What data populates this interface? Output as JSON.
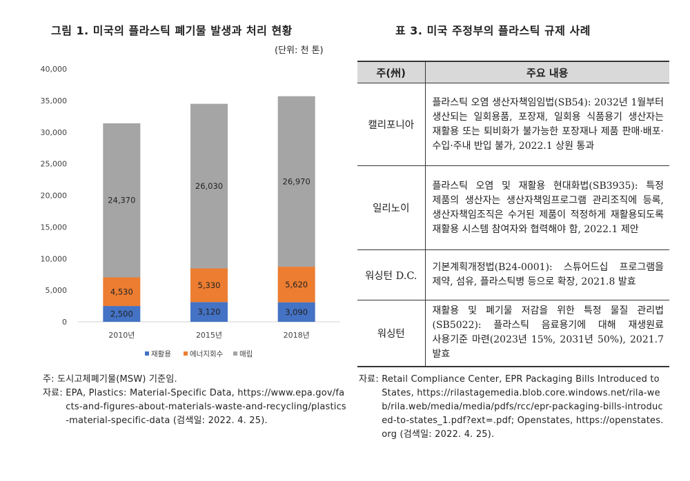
{
  "figure": {
    "title": "그림 1. 미국의 플라스틱 폐기물 발생과 처리 현황",
    "unit": "(단위: 천 톤)",
    "note_label": "주: ",
    "note_text": "도시고체폐기물(MSW) 기준임.",
    "source_label": "자료: ",
    "source_text": "EPA, Plastics: Material-Specific Data, https://www.epa.gov/facts-and-figures-about-materials-waste-and-recycling/plastics-material-specific-data (검색일: 2022. 4. 25)."
  },
  "chart_data": {
    "type": "bar",
    "stacked": true,
    "title": "",
    "xlabel": "",
    "ylabel": "",
    "categories": [
      "2010년",
      "2015년",
      "2018년"
    ],
    "series": [
      {
        "name": "재활용",
        "values": [
          2500,
          3120,
          3090
        ],
        "color": "#4472c4"
      },
      {
        "name": "에너지회수",
        "values": [
          4530,
          5330,
          5620
        ],
        "color": "#ed7d31"
      },
      {
        "name": "매립",
        "values": [
          24370,
          26030,
          26970
        ],
        "color": "#a5a5a5"
      }
    ],
    "value_labels": [
      [
        "2,500",
        "3,120",
        "3,090"
      ],
      [
        "4,530",
        "5,330",
        "5,620"
      ],
      [
        "24,370",
        "26,030",
        "26,970"
      ]
    ],
    "ylim": [
      0,
      40000
    ],
    "y_ticks": [
      0,
      5000,
      10000,
      15000,
      20000,
      25000,
      30000,
      35000,
      40000
    ],
    "y_tick_labels": [
      "0",
      "5,000",
      "10,000",
      "15,000",
      "20,000",
      "25,000",
      "30,000",
      "35,000",
      "40,000"
    ],
    "grid": false,
    "legend_position": "bottom"
  },
  "table": {
    "title": "표 3. 미국 주정부의 플라스틱 규제 사례",
    "headers": [
      "주(州)",
      "주요 내용"
    ],
    "rows": [
      {
        "state": "캘리포니아",
        "content": "플라스틱 오염 생산자책임임법(SB54): 2032년 1월부터 생산되는 일회용품, 포장재, 일회용 식품용기 생산자는 재활용 또는 퇴비화가 불가능한 포장재나 제품 판매·배포·수입·주내 반입 불가, 2022.1 상원 통과"
      },
      {
        "state": "일리노이",
        "content": "플라스틱 오염 및 재활용 현대화법(SB3935): 특정 제품의 생산자는 생산자책임프로그램 관리조직에 등록, 생산자책임조직은 수거된 제품이 적정하게 재활용되도록 재활용 시스템 참여자와 협력해야 함, 2022.1 제안"
      },
      {
        "state": "워싱턴 D.C.",
        "content": "기본계획개정법(B24-0001): 스튜어드십 프로그램을 제약, 섬유, 플라스틱병 등으로 확장, 2021.8 발효"
      },
      {
        "state": "워싱턴",
        "content": "재활용 및 폐기물 저감을 위한 특정 물질 관리법(SB5022): 플라스틱 음료용기에 대해 재생원료 사용기준 마련(2023년 15%, 2031년 50%), 2021.7 발효"
      }
    ],
    "source_label": "자료: ",
    "source_text": "Retail Compliance Center, EPR Packaging Bills Introduced to States, https://rilastagemedia.blob.core.windows.net/rila-web/rila.web/media/media/pdfs/rcc/epr-packaging-bills-introduced-to-states_1.pdf?ext=.pdf; Openstates, https://openstates.org (검색일: 2022. 4. 25)."
  }
}
